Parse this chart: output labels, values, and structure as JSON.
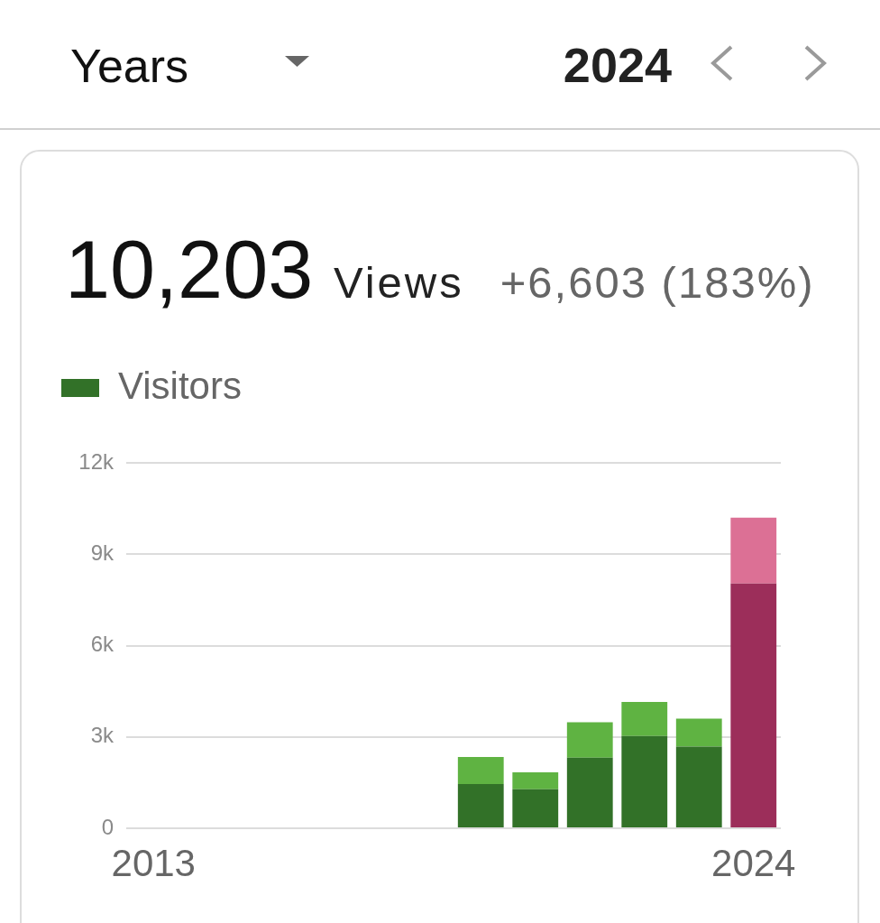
{
  "chart_data": {
    "type": "bar",
    "title": "10,203 Views",
    "subtitle": "+6,603 (183%)",
    "annotations": [
      "Years",
      "2024"
    ],
    "categories": [
      "2013",
      null,
      null,
      null,
      null,
      null,
      null,
      null,
      null,
      null,
      null,
      "2024"
    ],
    "series": [
      {
        "name": "Visitors",
        "color": "#327128",
        "colors": [
          "#327128",
          "#327128",
          "#327128",
          "#327128",
          "#327128",
          "#327128",
          "#327128",
          "#327128",
          "#327128",
          "#327128",
          "#327128",
          "#9c2e5a"
        ],
        "values": [
          null,
          null,
          null,
          null,
          null,
          null,
          1450,
          1280,
          2320,
          3030,
          2680,
          8040
        ]
      },
      {
        "colors": [
          "#5fb342",
          "#5fb342",
          "#5fb342",
          "#5fb342",
          "#5fb342",
          "#5fb342",
          "#5fb342",
          "#5fb342",
          "#5fb342",
          "#5fb342",
          "#5fb342",
          "#dc7095"
        ],
        "values": [
          null,
          null,
          null,
          null,
          null,
          null,
          890,
          560,
          1160,
          1120,
          920,
          2160
        ]
      }
    ],
    "stacked": true,
    "ylim": [
      0,
      12000
    ],
    "yticks": [
      0,
      {
        "value": 3000,
        "label": "3k"
      },
      {
        "value": 6000,
        "label": "6k"
      },
      {
        "value": 9000,
        "label": "9k"
      },
      {
        "value": 12000,
        "label": "12k"
      }
    ],
    "grid": "y",
    "legend": "top left"
  }
}
